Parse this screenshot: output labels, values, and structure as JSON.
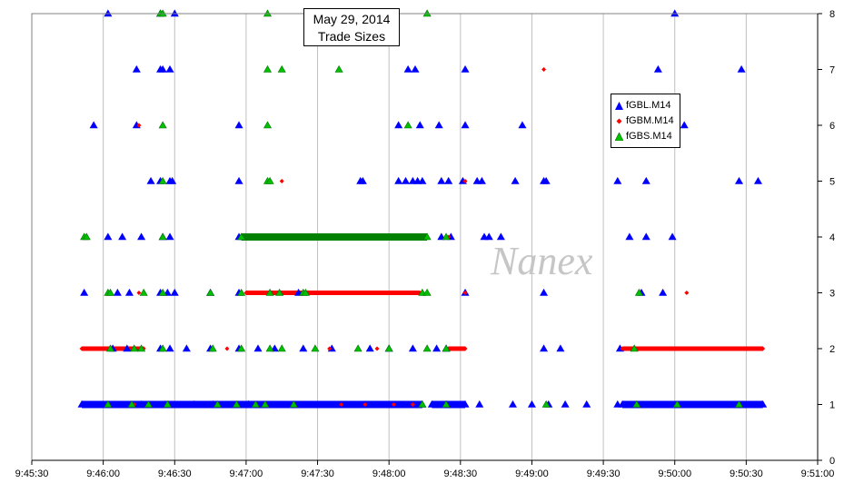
{
  "chart_data": {
    "type": "scatter",
    "title": "May 29, 2014",
    "subtitle": "Trade Sizes",
    "watermark": "Nanex",
    "xlim": [
      "9:45:30",
      "9:51:00"
    ],
    "ylim": [
      0,
      8
    ],
    "x_ticks": [
      "9:45:30",
      "9:46:00",
      "9:46:30",
      "9:47:00",
      "9:47:30",
      "9:48:00",
      "9:48:30",
      "9:49:00",
      "9:49:30",
      "9:50:00",
      "9:50:30",
      "9:51:00"
    ],
    "y_ticks": [
      "0",
      "1",
      "2",
      "3",
      "4",
      "5",
      "6",
      "7",
      "8"
    ],
    "grid": "vertical",
    "legend_position": "right",
    "series": [
      {
        "name": "fGBL.M14",
        "marker": "triangle",
        "color": "#0000ff",
        "points": [
          [
            "9:46:02",
            8
          ],
          [
            "9:46:24",
            8
          ],
          [
            "9:46:30",
            8
          ],
          [
            "9:50:00",
            8
          ],
          [
            "9:46:14",
            7
          ],
          [
            "9:46:24",
            7
          ],
          [
            "9:46:25",
            7
          ],
          [
            "9:46:28",
            7
          ],
          [
            "9:48:08",
            7
          ],
          [
            "9:48:11",
            7
          ],
          [
            "9:48:32",
            7
          ],
          [
            "9:49:53",
            7
          ],
          [
            "9:50:28",
            7
          ],
          [
            "9:45:56",
            6
          ],
          [
            "9:46:14",
            6
          ],
          [
            "9:46:57",
            6
          ],
          [
            "9:48:04",
            6
          ],
          [
            "9:48:13",
            6
          ],
          [
            "9:48:21",
            6
          ],
          [
            "9:48:32",
            6
          ],
          [
            "9:48:56",
            6
          ],
          [
            "9:50:04",
            6
          ],
          [
            "9:46:20",
            5
          ],
          [
            "9:46:24",
            5
          ],
          [
            "9:46:28",
            5
          ],
          [
            "9:46:29",
            5
          ],
          [
            "9:46:57",
            5
          ],
          [
            "9:47:48",
            5
          ],
          [
            "9:47:49",
            5
          ],
          [
            "9:48:04",
            5
          ],
          [
            "9:48:07",
            5
          ],
          [
            "9:48:10",
            5
          ],
          [
            "9:48:12",
            5
          ],
          [
            "9:48:14",
            5
          ],
          [
            "9:48:22",
            5
          ],
          [
            "9:48:25",
            5
          ],
          [
            "9:48:31",
            5
          ],
          [
            "9:48:37",
            5
          ],
          [
            "9:48:39",
            5
          ],
          [
            "9:48:53",
            5
          ],
          [
            "9:49:05",
            5
          ],
          [
            "9:49:06",
            5
          ],
          [
            "9:49:36",
            5
          ],
          [
            "9:49:48",
            5
          ],
          [
            "9:50:27",
            5
          ],
          [
            "9:50:35",
            5
          ],
          [
            "9:46:02",
            4
          ],
          [
            "9:46:08",
            4
          ],
          [
            "9:46:16",
            4
          ],
          [
            "9:46:25",
            4
          ],
          [
            "9:46:28",
            4
          ],
          [
            "9:46:57",
            4
          ],
          [
            "9:48:22",
            4
          ],
          [
            "9:48:26",
            4
          ],
          [
            "9:48:40",
            4
          ],
          [
            "9:48:42",
            4
          ],
          [
            "9:48:47",
            4
          ],
          [
            "9:49:41",
            4
          ],
          [
            "9:49:48",
            4
          ],
          [
            "9:49:59",
            4
          ],
          [
            "9:45:52",
            3
          ],
          [
            "9:46:06",
            3
          ],
          [
            "9:46:11",
            3
          ],
          [
            "9:46:24",
            3
          ],
          [
            "9:46:27",
            3
          ],
          [
            "9:46:30",
            3
          ],
          [
            "9:46:45",
            3
          ],
          [
            "9:46:57",
            3
          ],
          [
            "9:47:22",
            3
          ],
          [
            "9:48:32",
            3
          ],
          [
            "9:49:05",
            3
          ],
          [
            "9:49:46",
            3
          ],
          [
            "9:49:55",
            3
          ],
          [
            "9:46:04",
            2
          ],
          [
            "9:46:10",
            2
          ],
          [
            "9:46:24",
            2
          ],
          [
            "9:46:28",
            2
          ],
          [
            "9:46:35",
            2
          ],
          [
            "9:46:45",
            2
          ],
          [
            "9:46:57",
            2
          ],
          [
            "9:47:05",
            2
          ],
          [
            "9:47:12",
            2
          ],
          [
            "9:47:24",
            2
          ],
          [
            "9:47:36",
            2
          ],
          [
            "9:47:52",
            2
          ],
          [
            "9:48:00",
            2
          ],
          [
            "9:48:10",
            2
          ],
          [
            "9:48:20",
            2
          ],
          [
            "9:48:24",
            2
          ],
          [
            "9:49:05",
            2
          ],
          [
            "9:49:12",
            2
          ],
          [
            "9:49:37",
            2
          ],
          [
            "9:46:16",
            1
          ],
          [
            "9:46:26",
            1
          ],
          [
            "9:46:38",
            1
          ],
          [
            "9:46:46",
            1
          ],
          [
            "9:48:24",
            1
          ],
          [
            "9:48:38",
            1
          ],
          [
            "9:48:52",
            1
          ],
          [
            "9:49:00",
            1
          ],
          [
            "9:49:07",
            1
          ],
          [
            "9:49:14",
            1
          ],
          [
            "9:49:23",
            1
          ],
          [
            "9:49:36",
            1
          ]
        ],
        "runs": [
          [
            "9:45:51",
            "9:47:01",
            1
          ],
          [
            "9:47:01",
            "9:48:14",
            1
          ],
          [
            "9:48:18",
            "9:48:32",
            1
          ],
          [
            "9:49:38",
            "9:50:37",
            1
          ]
        ]
      },
      {
        "name": "fGBM.M14",
        "marker": "diamond",
        "color": "#ff0000",
        "points": [
          [
            "9:46:15",
            6
          ],
          [
            "9:47:15",
            5
          ],
          [
            "9:48:32",
            5
          ],
          [
            "9:49:05",
            7
          ],
          [
            "9:50:05",
            3
          ],
          [
            "9:48:32",
            3
          ],
          [
            "9:48:25",
            4
          ],
          [
            "9:46:15",
            3
          ],
          [
            "9:47:14",
            3
          ],
          [
            "9:47:34",
            3
          ],
          [
            "9:48:10",
            3
          ],
          [
            "9:46:16",
            2
          ],
          [
            "9:46:52",
            2
          ],
          [
            "9:47:35",
            2
          ],
          [
            "9:47:55",
            2
          ],
          [
            "9:48:24",
            2
          ],
          [
            "9:46:13",
            1
          ],
          [
            "9:47:40",
            1
          ],
          [
            "9:47:50",
            1
          ],
          [
            "9:48:02",
            1
          ],
          [
            "9:48:10",
            1
          ]
        ],
        "runs": [
          [
            "9:45:51",
            "9:46:17",
            2
          ],
          [
            "9:48:25",
            "9:48:32",
            2
          ],
          [
            "9:49:38",
            "9:50:37",
            2
          ],
          [
            "9:47:00",
            "9:48:13",
            3
          ]
        ]
      },
      {
        "name": "fGBS.M14",
        "marker": "triangle",
        "color": "#00c000",
        "points": [
          [
            "9:46:24",
            8
          ],
          [
            "9:46:25",
            8
          ],
          [
            "9:47:09",
            8
          ],
          [
            "9:48:16",
            8
          ],
          [
            "9:47:09",
            7
          ],
          [
            "9:47:15",
            7
          ],
          [
            "9:47:39",
            7
          ],
          [
            "9:48:08",
            6
          ],
          [
            "9:46:25",
            6
          ],
          [
            "9:47:09",
            6
          ],
          [
            "9:46:25",
            5
          ],
          [
            "9:47:09",
            5
          ],
          [
            "9:47:10",
            5
          ],
          [
            "9:45:52",
            4
          ],
          [
            "9:45:53",
            4
          ],
          [
            "9:46:25",
            4
          ],
          [
            "9:48:24",
            4
          ],
          [
            "9:46:02",
            3
          ],
          [
            "9:46:03",
            3
          ],
          [
            "9:46:17",
            3
          ],
          [
            "9:46:25",
            3
          ],
          [
            "9:46:45",
            3
          ],
          [
            "9:46:58",
            3
          ],
          [
            "9:47:10",
            3
          ],
          [
            "9:47:14",
            3
          ],
          [
            "9:47:24",
            3
          ],
          [
            "9:47:25",
            3
          ],
          [
            "9:48:14",
            3
          ],
          [
            "9:48:16",
            3
          ],
          [
            "9:49:45",
            3
          ],
          [
            "9:46:03",
            2
          ],
          [
            "9:46:13",
            2
          ],
          [
            "9:46:16",
            2
          ],
          [
            "9:46:25",
            2
          ],
          [
            "9:46:46",
            2
          ],
          [
            "9:46:58",
            2
          ],
          [
            "9:47:10",
            2
          ],
          [
            "9:47:15",
            2
          ],
          [
            "9:47:29",
            2
          ],
          [
            "9:47:47",
            2
          ],
          [
            "9:48:00",
            2
          ],
          [
            "9:48:16",
            2
          ],
          [
            "9:48:24",
            2
          ],
          [
            "9:49:43",
            2
          ],
          [
            "9:46:02",
            1
          ],
          [
            "9:46:12",
            1
          ],
          [
            "9:46:19",
            1
          ],
          [
            "9:46:27",
            1
          ],
          [
            "9:46:48",
            1
          ],
          [
            "9:46:56",
            1
          ],
          [
            "9:47:04",
            1
          ],
          [
            "9:47:08",
            1
          ],
          [
            "9:47:20",
            1
          ],
          [
            "9:48:14",
            1
          ],
          [
            "9:48:24",
            1
          ],
          [
            "9:49:06",
            1
          ],
          [
            "9:49:44",
            1
          ],
          [
            "9:50:01",
            1
          ],
          [
            "9:50:27",
            1
          ]
        ],
        "runs": [
          [
            "9:46:58",
            "9:48:16",
            4
          ]
        ]
      }
    ]
  }
}
